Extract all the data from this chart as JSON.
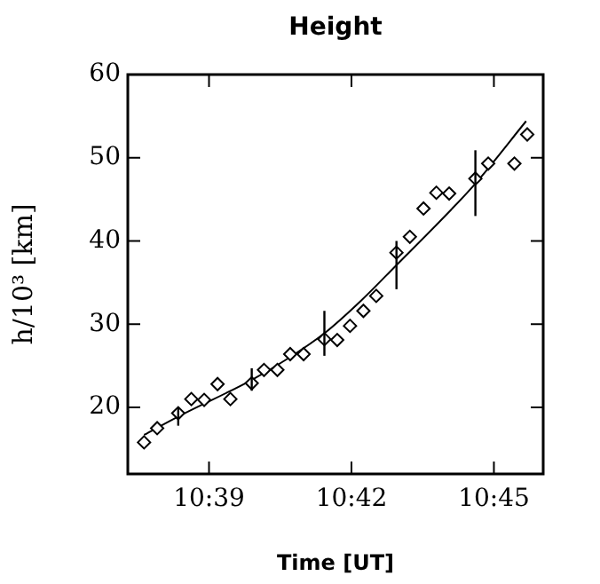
{
  "chart_data": {
    "type": "scatter",
    "title": "Height",
    "xlabel": "Time [UT]",
    "ylabel": "h/10³ [km]",
    "xlim": [
      10.6215,
      10.7673
    ],
    "ylim": [
      12,
      60
    ],
    "xticks": [
      {
        "value": 10.65,
        "label": "10:39"
      },
      {
        "value": 10.7,
        "label": "10:42"
      },
      {
        "value": 10.75,
        "label": "10:45"
      }
    ],
    "yticks": [
      20,
      30,
      40,
      50,
      60
    ],
    "grid": false,
    "legend": false,
    "series": [
      {
        "marker": "diamond",
        "color": "#000000",
        "x": [
          10.6272,
          10.6318,
          10.6392,
          10.6438,
          10.6483,
          10.653,
          10.6575,
          10.665,
          10.6693,
          10.674,
          10.6785,
          10.6832,
          10.6905,
          10.695,
          10.6995,
          10.7042,
          10.7087,
          10.7158,
          10.7205,
          10.7253,
          10.7298,
          10.7343,
          10.7435,
          10.748,
          10.7572,
          10.7617
        ],
        "values": [
          15.8,
          17.5,
          19.3,
          21.0,
          20.9,
          22.8,
          21.0,
          22.9,
          24.5,
          24.5,
          26.4,
          26.4,
          28.2,
          28.1,
          29.8,
          31.6,
          33.4,
          38.6,
          40.5,
          43.9,
          45.8,
          45.7,
          47.5,
          49.3,
          49.3,
          52.8
        ]
      },
      {
        "type": "line",
        "marker": "none",
        "line_style": "solid",
        "color": "#000000",
        "x": [
          10.6272,
          10.6392,
          10.665,
          10.6783,
          10.6905,
          10.7033,
          10.7158,
          10.73,
          10.7435,
          10.7613
        ],
        "values": [
          16.7,
          18.9,
          23.3,
          26.0,
          28.9,
          32.8,
          37.1,
          42.0,
          46.9,
          54.4
        ],
        "errors": [
          null,
          [
            17.8,
            20.0
          ],
          [
            22.0,
            24.7
          ],
          null,
          [
            26.2,
            31.6
          ],
          null,
          [
            34.2,
            40.0
          ],
          null,
          [
            43.0,
            50.9
          ],
          null
        ]
      }
    ]
  }
}
